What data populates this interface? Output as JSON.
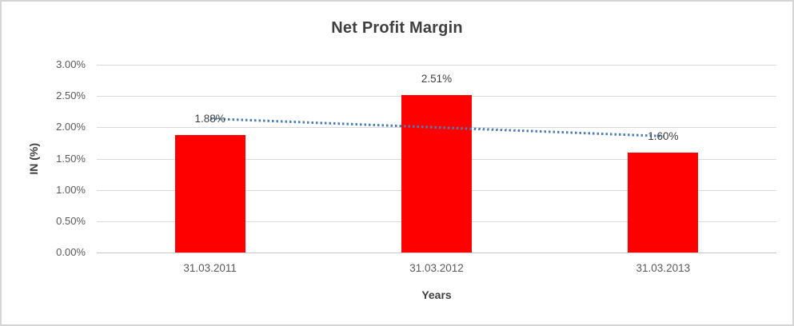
{
  "appearance": {
    "frame_border_color": "#d5d5d5",
    "background_color": "#ffffff",
    "gridline_color": "#d9d9d9",
    "title_color": "#3f3f3f",
    "tick_label_color": "#595959",
    "data_label_color": "#404040"
  },
  "chart_data": {
    "type": "bar",
    "title": "Net Profit Margin",
    "xlabel": "Years",
    "ylabel": "IN (%)",
    "categories": [
      "31.03.2011",
      "31.03.2012",
      "31.03.2013"
    ],
    "values": [
      1.88,
      2.51,
      1.6
    ],
    "data_labels": [
      "1.88%",
      "2.51%",
      "1.60%"
    ],
    "ylim": [
      0,
      3
    ],
    "y_tick_step": 0.5,
    "y_tick_labels": [
      "3.00%",
      "2.50%",
      "2.00%",
      "1.50%",
      "1.00%",
      "0.50%",
      "0.00%"
    ],
    "grid": true,
    "legend": "none",
    "bar_color": "#ff0000",
    "trendline": {
      "type": "linear",
      "style": "dotted",
      "color": "#4a7ebb",
      "start_value": 2.137,
      "end_value": 1.857
    }
  }
}
